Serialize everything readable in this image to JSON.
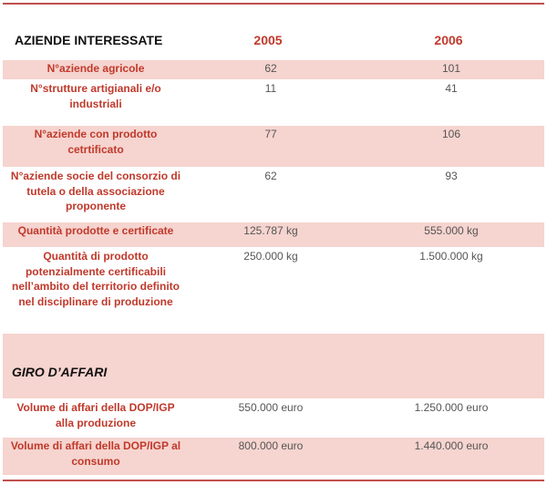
{
  "table": {
    "header": [
      "AZIENDE INTERESSATE",
      "2005",
      "2006"
    ],
    "rows": [
      [
        "N°aziende agricole",
        "62",
        "101"
      ],
      [
        "N°strutture artigianali e/o industriali",
        "11",
        "41"
      ],
      [
        "N°aziende con prodotto cetrtificato",
        "77",
        "106"
      ],
      [
        "N°aziende socie del consorzio di tutela o della associazione proponente",
        "62",
        "93"
      ],
      [
        "Quantità prodotte e certificate",
        "125.787 kg",
        "555.000 kg"
      ],
      [
        "Quantità di prodotto potenzialmente certificabili nell’ambito del territorio definito nel disciplinare di produzione",
        "250.000 kg",
        "1.500.000 kg"
      ]
    ],
    "section": "GIRO D’AFFARI",
    "rows2": [
      [
        "Volume di affari della DOP/IGP alla produzione",
        "550.000 euro",
        "1.250.000 euro"
      ],
      [
        "Volume di affari della DOP/IGP al consumo",
        "800.000 euro",
        "1.440.000 euro"
      ]
    ]
  }
}
